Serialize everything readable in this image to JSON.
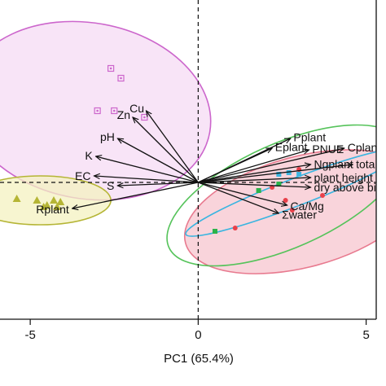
{
  "chart_data": {
    "type": "scatter",
    "subtype": "pca-biplot",
    "xlabel": "PC1 (65.4%)",
    "ylabel": "",
    "xlim": [
      -5.9,
      5.3
    ],
    "ylim": [
      -4.2,
      5.6
    ],
    "x_ticks": [
      {
        "value": -5,
        "label": "-5"
      },
      {
        "value": 0,
        "label": "0"
      },
      {
        "value": 5,
        "label": "5"
      }
    ],
    "origin": [
      0,
      0
    ],
    "grid": false,
    "reference_lines": "dashed at x=0 and y=0",
    "colors": {
      "magenta_group": "#cc66cc",
      "magenta_fill": "#f6dbf4",
      "yellow_group": "#b5b535",
      "yellow_fill": "#f4f2c0",
      "green_group": "#55c35a",
      "cyan_group": "#3ab5e0",
      "red_group": "#e87a8f",
      "pink_fill": "#f7c5cf",
      "arrow": "#111111"
    },
    "ellipses": [
      {
        "group": "magenta",
        "center": [
          -3.3,
          2.2
        ],
        "rx": 3.7,
        "ry": 2.7,
        "angle_deg": -10,
        "color": "#cc66cc",
        "fill": "#f6dbf4"
      },
      {
        "group": "yellow",
        "center": [
          -4.7,
          -0.55
        ],
        "rx": 2.1,
        "ry": 0.75,
        "angle_deg": 0,
        "color": "#b5b535",
        "fill": "#f4f2c0"
      },
      {
        "group": "red",
        "center": [
          3.1,
          -0.9
        ],
        "rx": 3.6,
        "ry": 1.7,
        "angle_deg": 15,
        "color": "#e87a8f",
        "fill": "#f7c5cf"
      },
      {
        "group": "green",
        "center": [
          2.6,
          -0.4
        ],
        "rx": 3.8,
        "ry": 1.6,
        "angle_deg": 24,
        "color": "#55c35a",
        "fill": "none"
      },
      {
        "group": "cyan",
        "center": [
          2.9,
          -0.3
        ],
        "rx": 3.5,
        "ry": 0.42,
        "angle_deg": 21,
        "color": "#3ab5e0",
        "fill": "none"
      }
    ],
    "points": [
      {
        "group": "magenta",
        "shape": "square-dot",
        "color": "#cc66cc",
        "coords": [
          [
            -2.6,
            3.5
          ],
          [
            -2.3,
            3.2
          ],
          [
            -3.0,
            2.2
          ],
          [
            -1.6,
            2.0
          ],
          [
            -2.5,
            2.2
          ]
        ]
      },
      {
        "group": "yellow",
        "shape": "triangle",
        "color": "#b5b535",
        "coords": [
          [
            -5.4,
            -0.5
          ],
          [
            -4.8,
            -0.55
          ],
          [
            -4.3,
            -0.55
          ],
          [
            -4.2,
            -0.75
          ],
          [
            -4.5,
            -0.7
          ],
          [
            -4.1,
            -0.6
          ],
          [
            -4.6,
            -0.75
          ]
        ]
      },
      {
        "group": "green",
        "shape": "square",
        "color": "#2bb34a",
        "coords": [
          [
            1.8,
            -0.25
          ],
          [
            2.4,
            -0.05
          ],
          [
            0.5,
            -1.5
          ]
        ]
      },
      {
        "group": "cyan",
        "shape": "square",
        "color": "#3ab5e0",
        "coords": [
          [
            2.7,
            0.3
          ],
          [
            3.0,
            0.25
          ],
          [
            2.4,
            0.25
          ]
        ]
      },
      {
        "group": "red",
        "shape": "circle",
        "color": "#e8404a",
        "coords": [
          [
            2.8,
            -0.85
          ],
          [
            2.6,
            -0.55
          ],
          [
            3.7,
            -0.4
          ],
          [
            1.1,
            -1.4
          ],
          [
            2.2,
            -0.15
          ],
          [
            3.0,
            0.4
          ]
        ]
      }
    ],
    "loadings": [
      {
        "label": "Zn",
        "x": -1.95,
        "y": 2.0
      },
      {
        "label": "Cu",
        "x": -1.55,
        "y": 2.2
      },
      {
        "label": "pH",
        "x": -2.4,
        "y": 1.35
      },
      {
        "label": "K",
        "x": -3.05,
        "y": 0.8
      },
      {
        "label": "EC",
        "x": -3.1,
        "y": 0.2
      },
      {
        "label": "S",
        "x": -2.4,
        "y": -0.1
      },
      {
        "label": "Rplant",
        "x": -3.75,
        "y": -0.8
      },
      {
        "label": "Pplant",
        "x": 2.75,
        "y": 1.35
      },
      {
        "label": "Eplant",
        "x": 2.2,
        "y": 1.05
      },
      {
        "label": "PNUE",
        "x": 3.3,
        "y": 1.0
      },
      {
        "label": "Cplant",
        "x": 4.35,
        "y": 1.05
      },
      {
        "label": "Ngplant",
        "x": 3.35,
        "y": 0.55
      },
      {
        "label": "total",
        "x": 4.6,
        "y": 0.55
      },
      {
        "label": "plant height",
        "x": 3.35,
        "y": 0.15
      },
      {
        "label": "dry above biomass",
        "x": 3.35,
        "y": -0.15
      },
      {
        "label": "Ca/Mg",
        "x": 2.65,
        "y": -0.7
      },
      {
        "label": "Σwater",
        "x": 2.4,
        "y": -0.95
      }
    ]
  }
}
